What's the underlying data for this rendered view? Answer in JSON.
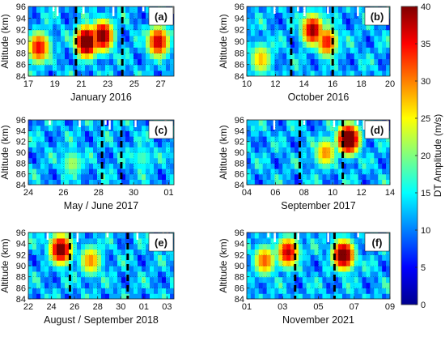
{
  "chart_data": [
    {
      "type": "heatmap",
      "panel": "(a)",
      "ylabel": "Altitude (km)",
      "xlabel": "January 2016",
      "x_ticks": [
        "17",
        "19",
        "21",
        "23",
        "25",
        "27"
      ],
      "y_ticks": [
        "84",
        "86",
        "88",
        "90",
        "92",
        "94",
        "96"
      ],
      "x_range": [
        17,
        28
      ],
      "ylim": [
        84,
        96
      ],
      "dashed_lines": [
        20.6,
        24.1
      ],
      "hotspots": [
        {
          "x": 21.4,
          "y": 90,
          "value": 38
        },
        {
          "x": 22.6,
          "y": 91,
          "value": 34
        },
        {
          "x": 17.8,
          "y": 89,
          "value": 28
        },
        {
          "x": 26.8,
          "y": 90,
          "value": 30
        }
      ]
    },
    {
      "type": "heatmap",
      "panel": "(b)",
      "ylabel": "Altitude (km)",
      "xlabel": "October 2016",
      "x_ticks": [
        "10",
        "12",
        "14",
        "16",
        "18",
        "20"
      ],
      "y_ticks": [
        "84",
        "86",
        "88",
        "90",
        "92",
        "94",
        "96"
      ],
      "x_range": [
        10,
        20
      ],
      "ylim": [
        84,
        96
      ],
      "dashed_lines": [
        13.1,
        16.0
      ],
      "hotspots": [
        {
          "x": 14.6,
          "y": 92,
          "value": 32
        },
        {
          "x": 15.6,
          "y": 90,
          "value": 27
        },
        {
          "x": 11.0,
          "y": 87,
          "value": 20
        }
      ]
    },
    {
      "type": "heatmap",
      "panel": "(c)",
      "ylabel": "Altitude (km)",
      "xlabel": "May / June 2017",
      "x_ticks": [
        "24",
        "26",
        "28",
        "30",
        "01"
      ],
      "y_ticks": [
        "84",
        "86",
        "88",
        "90",
        "92",
        "94",
        "96"
      ],
      "x_range": [
        24,
        32.3
      ],
      "ylim": [
        84,
        96
      ],
      "dashed_lines": [
        28.2,
        29.3
      ],
      "hotspots": [
        {
          "x": 26.5,
          "y": 88,
          "value": 14
        },
        {
          "x": 30.5,
          "y": 89,
          "value": 10
        }
      ]
    },
    {
      "type": "heatmap",
      "panel": "(d)",
      "ylabel": "Altitude (km)",
      "xlabel": "September 2017",
      "x_ticks": [
        "04",
        "06",
        "08",
        "10",
        "12",
        "14"
      ],
      "y_ticks": [
        "84",
        "86",
        "88",
        "90",
        "92",
        "94",
        "96"
      ],
      "x_range": [
        4,
        14
      ],
      "ylim": [
        84,
        96
      ],
      "dashed_lines": [
        7.7,
        10.7
      ],
      "hotspots": [
        {
          "x": 11.1,
          "y": 92.5,
          "value": 40
        },
        {
          "x": 9.5,
          "y": 90,
          "value": 22
        }
      ]
    },
    {
      "type": "heatmap",
      "panel": "(e)",
      "ylabel": "Altitude (km)",
      "xlabel": "August / September 2018",
      "x_ticks": [
        "22",
        "24",
        "26",
        "28",
        "30",
        "01",
        "03"
      ],
      "y_ticks": [
        "84",
        "86",
        "88",
        "90",
        "92",
        "94",
        "96"
      ],
      "x_range": [
        22,
        34.6
      ],
      "ylim": [
        84,
        96
      ],
      "dashed_lines": [
        25.6,
        30.6
      ],
      "hotspots": [
        {
          "x": 24.8,
          "y": 93,
          "value": 34
        },
        {
          "x": 27.4,
          "y": 91,
          "value": 22
        }
      ]
    },
    {
      "type": "heatmap",
      "panel": "(f)",
      "ylabel": "Altitude (km)",
      "xlabel": "November 2021",
      "x_ticks": [
        "01",
        "03",
        "05",
        "07",
        "09"
      ],
      "y_ticks": [
        "84",
        "86",
        "88",
        "90",
        "92",
        "94",
        "96"
      ],
      "x_range": [
        1,
        9
      ],
      "ylim": [
        84,
        96
      ],
      "dashed_lines": [
        3.7,
        5.9
      ],
      "hotspots": [
        {
          "x": 6.4,
          "y": 92,
          "value": 36
        },
        {
          "x": 3.3,
          "y": 92.5,
          "value": 30
        },
        {
          "x": 2.0,
          "y": 91,
          "value": 24
        }
      ]
    }
  ],
  "colorbar": {
    "label": "DT Amplitude (m/s)",
    "ticks": [
      "0",
      "5",
      "10",
      "15",
      "20",
      "25",
      "30",
      "35",
      "40"
    ],
    "range": [
      0,
      40
    ],
    "colormap": "jet"
  },
  "panel_labels": [
    "(a)",
    "(b)",
    "(c)",
    "(d)",
    "(e)",
    "(f)"
  ]
}
